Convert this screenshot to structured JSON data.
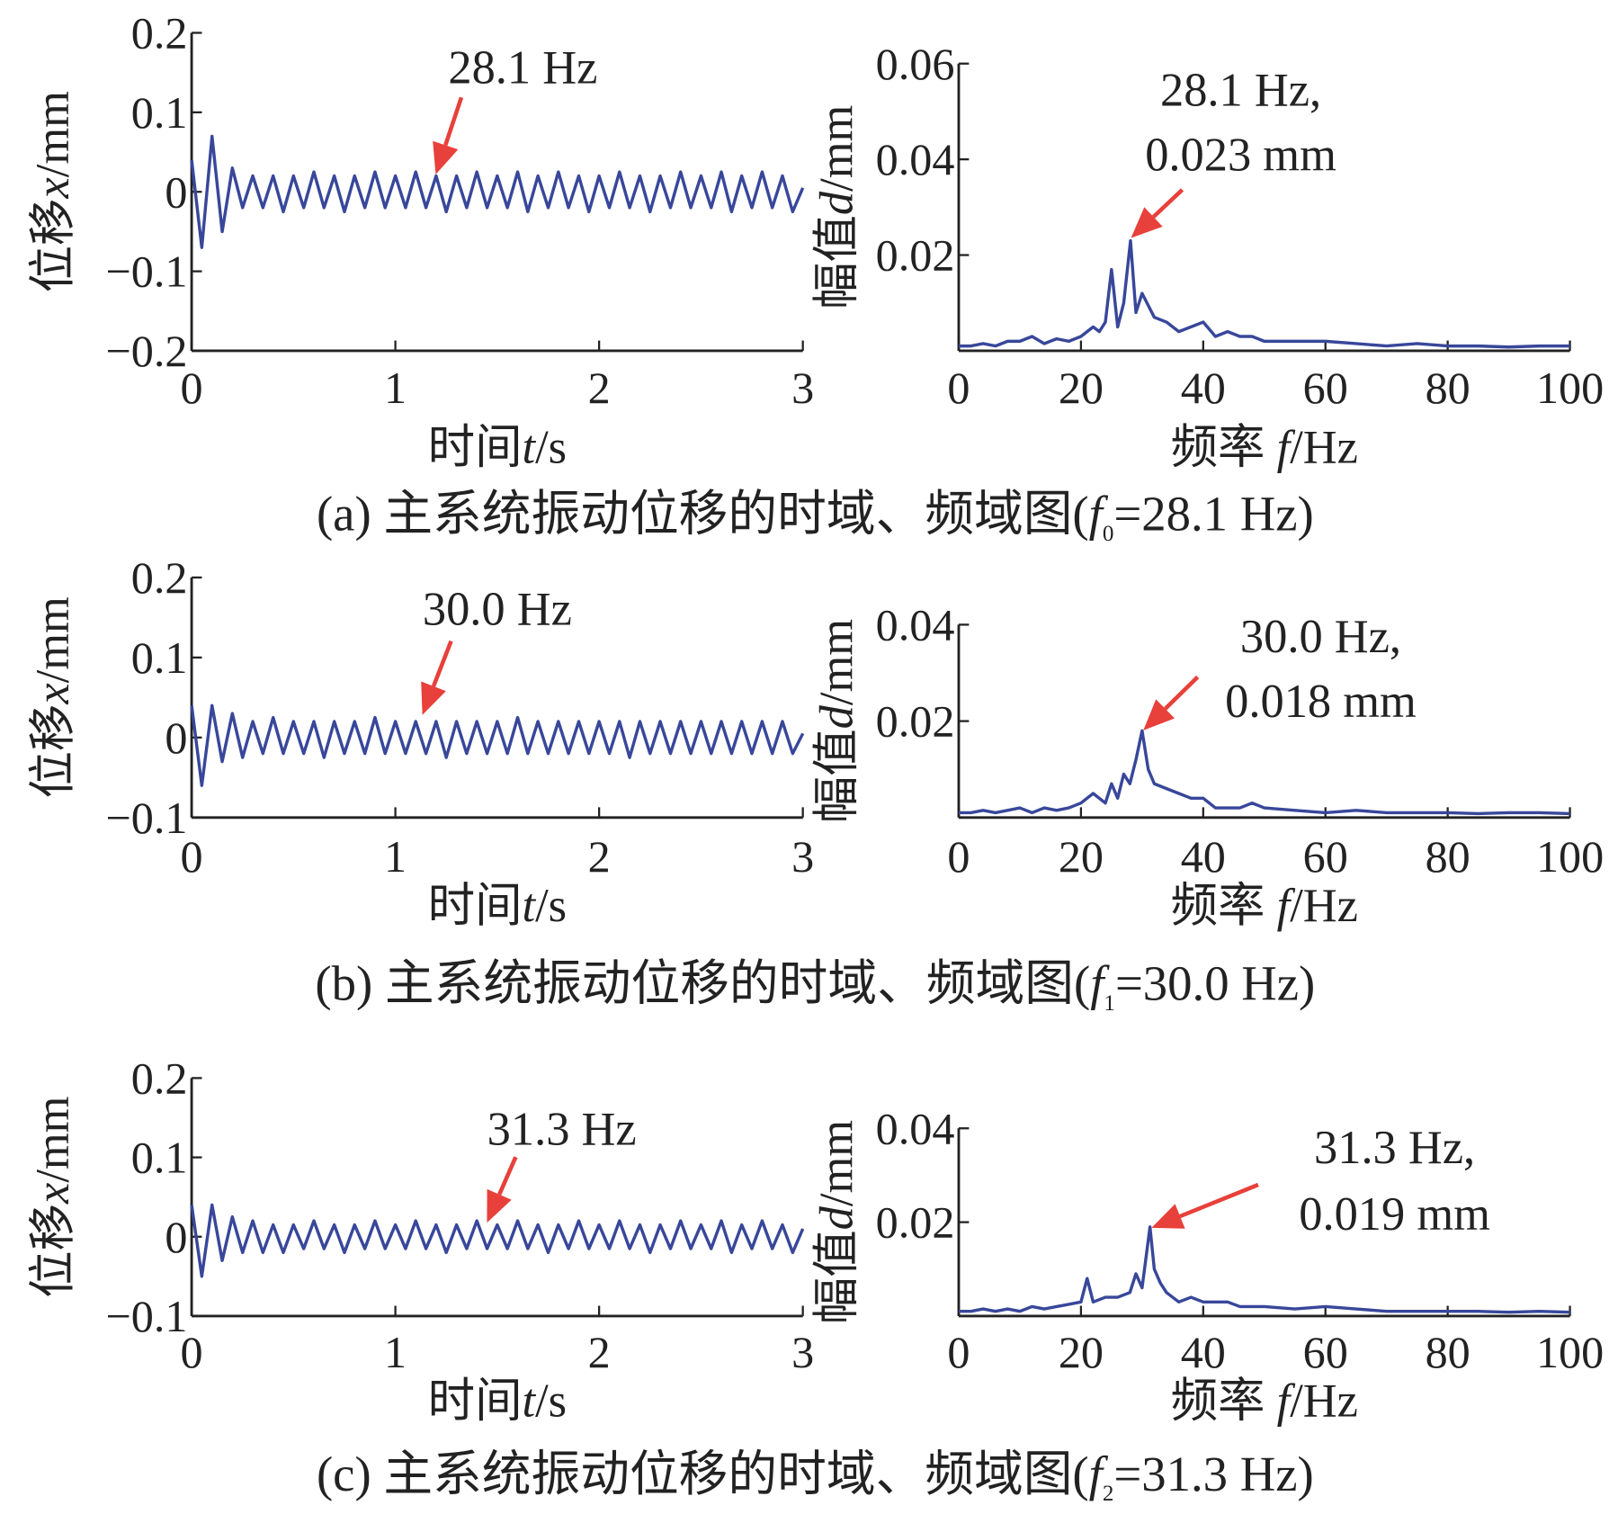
{
  "chart_data": [
    {
      "type": "line",
      "xlabel": [
        "时间",
        "t",
        "/s"
      ],
      "ylabel": [
        "位移",
        "x",
        "/mm"
      ],
      "xlim": [
        0,
        3
      ],
      "ylim": [
        -0.2,
        0.2
      ],
      "xticks": [
        0,
        1,
        2,
        3
      ],
      "yticks": [
        {
          "value": -0.2,
          "label": "−0.2"
        },
        {
          "value": -0.1,
          "label": "−0.1"
        },
        0,
        0.1,
        0.2
      ],
      "annotations": [
        "28.1 Hz"
      ],
      "series": [
        {
          "color": "#38479a",
          "x": [
            0,
            0.05,
            0.1,
            0.15,
            0.2,
            0.25,
            0.3,
            0.35,
            0.4,
            0.45,
            0.5,
            0.55,
            0.6,
            0.65,
            0.7,
            0.75,
            0.8,
            0.85,
            0.9,
            0.95,
            1,
            1.05,
            1.1,
            1.15,
            1.2,
            1.25,
            1.3,
            1.35,
            1.4,
            1.45,
            1.5,
            1.55,
            1.6,
            1.65,
            1.7,
            1.75,
            1.8,
            1.85,
            1.9,
            1.95,
            2,
            2.05,
            2.1,
            2.15,
            2.2,
            2.25,
            2.3,
            2.35,
            2.4,
            2.45,
            2.5,
            2.55,
            2.6,
            2.65,
            2.7,
            2.75,
            2.8,
            2.85,
            2.9,
            2.95,
            3
          ],
          "values": [
            0.04,
            -0.07,
            0.07,
            -0.05,
            0.03,
            -0.02,
            0.02,
            -0.02,
            0.02,
            -0.025,
            0.02,
            -0.02,
            0.025,
            -0.02,
            0.02,
            -0.025,
            0.02,
            -0.02,
            0.025,
            -0.02,
            0.02,
            -0.02,
            0.025,
            -0.02,
            0.02,
            -0.025,
            0.02,
            -0.02,
            0.025,
            -0.02,
            0.02,
            -0.02,
            0.025,
            -0.025,
            0.02,
            -0.02,
            0.025,
            -0.02,
            0.02,
            -0.025,
            0.02,
            -0.02,
            0.025,
            -0.02,
            0.02,
            -0.025,
            0.02,
            -0.02,
            0.025,
            -0.02,
            0.02,
            -0.02,
            0.025,
            -0.025,
            0.02,
            -0.02,
            0.025,
            -0.02,
            0.02,
            -0.025,
            0.005
          ]
        }
      ]
    },
    {
      "type": "line",
      "xlabel": [
        "频率 ",
        "f",
        "/Hz"
      ],
      "ylabel": [
        "幅值",
        "d",
        "/mm"
      ],
      "xlim": [
        0,
        100
      ],
      "ylim": [
        0,
        0.06
      ],
      "xticks": [
        0,
        20,
        40,
        60,
        80,
        100
      ],
      "yticks": [
        0.02,
        0.04,
        0.06
      ],
      "annotations": [
        "28.1 Hz,",
        "0.023 mm"
      ],
      "series": [
        {
          "color": "#38479a",
          "x": [
            0,
            2,
            4,
            6,
            8,
            10,
            12,
            14,
            16,
            18,
            20,
            22,
            23,
            24,
            25,
            26,
            27,
            28.1,
            29,
            30,
            32,
            34,
            36,
            38,
            40,
            42,
            44,
            46,
            48,
            50,
            55,
            60,
            65,
            70,
            75,
            80,
            85,
            90,
            95,
            100
          ],
          "values": [
            0.001,
            0.001,
            0.0015,
            0.001,
            0.002,
            0.002,
            0.003,
            0.0015,
            0.0025,
            0.002,
            0.003,
            0.005,
            0.004,
            0.006,
            0.017,
            0.005,
            0.01,
            0.023,
            0.008,
            0.012,
            0.007,
            0.006,
            0.004,
            0.005,
            0.006,
            0.003,
            0.004,
            0.003,
            0.003,
            0.002,
            0.002,
            0.002,
            0.0015,
            0.001,
            0.0015,
            0.001,
            0.001,
            0.0008,
            0.001,
            0.001
          ]
        }
      ]
    },
    {
      "type": "line",
      "xlabel": [
        "时间",
        "t",
        "/s"
      ],
      "ylabel": [
        "位移",
        "x",
        "/mm"
      ],
      "xlim": [
        0,
        3
      ],
      "ylim": [
        -0.1,
        0.2
      ],
      "xticks": [
        0,
        1,
        2,
        3
      ],
      "yticks": [
        {
          "value": -0.1,
          "label": "−0.1"
        },
        0,
        0.1,
        0.2
      ],
      "annotations": [
        "30.0 Hz"
      ],
      "series": [
        {
          "color": "#38479a",
          "x": [
            0,
            0.05,
            0.1,
            0.15,
            0.2,
            0.25,
            0.3,
            0.35,
            0.4,
            0.45,
            0.5,
            0.55,
            0.6,
            0.65,
            0.7,
            0.75,
            0.8,
            0.85,
            0.9,
            0.95,
            1,
            1.05,
            1.1,
            1.15,
            1.2,
            1.25,
            1.3,
            1.35,
            1.4,
            1.45,
            1.5,
            1.55,
            1.6,
            1.65,
            1.7,
            1.75,
            1.8,
            1.85,
            1.9,
            1.95,
            2,
            2.05,
            2.1,
            2.15,
            2.2,
            2.25,
            2.3,
            2.35,
            2.4,
            2.45,
            2.5,
            2.55,
            2.6,
            2.65,
            2.7,
            2.75,
            2.8,
            2.85,
            2.9,
            2.95,
            3
          ],
          "values": [
            0.04,
            -0.06,
            0.04,
            -0.03,
            0.03,
            -0.025,
            0.02,
            -0.02,
            0.025,
            -0.02,
            0.02,
            -0.02,
            0.02,
            -0.025,
            0.02,
            -0.02,
            0.02,
            -0.02,
            0.025,
            -0.02,
            0.02,
            -0.02,
            0.02,
            -0.02,
            0.02,
            -0.025,
            0.02,
            -0.02,
            0.02,
            -0.02,
            0.02,
            -0.02,
            0.025,
            -0.02,
            0.02,
            -0.02,
            0.02,
            -0.02,
            0.02,
            -0.02,
            0.02,
            -0.02,
            0.02,
            -0.025,
            0.02,
            -0.02,
            0.02,
            -0.02,
            0.02,
            -0.02,
            0.02,
            -0.02,
            0.02,
            -0.02,
            0.02,
            -0.02,
            0.02,
            -0.02,
            0.02,
            -0.02,
            0.005
          ]
        }
      ]
    },
    {
      "type": "line",
      "xlabel": [
        "频率 ",
        "f",
        "/Hz"
      ],
      "ylabel": [
        "幅值",
        "d",
        "/mm"
      ],
      "xlim": [
        0,
        100
      ],
      "ylim": [
        0,
        0.04
      ],
      "xticks": [
        0,
        20,
        40,
        60,
        80,
        100
      ],
      "yticks": [
        0.02,
        0.04
      ],
      "annotations": [
        "30.0 Hz,",
        "0.018 mm"
      ],
      "series": [
        {
          "color": "#38479a",
          "x": [
            0,
            2,
            4,
            6,
            8,
            10,
            12,
            14,
            16,
            18,
            20,
            22,
            24,
            25,
            26,
            27,
            28,
            29,
            30,
            31,
            32,
            34,
            36,
            38,
            40,
            42,
            44,
            46,
            48,
            50,
            55,
            60,
            65,
            70,
            75,
            80,
            85,
            90,
            95,
            100
          ],
          "values": [
            0.001,
            0.001,
            0.0015,
            0.001,
            0.0015,
            0.002,
            0.001,
            0.002,
            0.0015,
            0.002,
            0.003,
            0.005,
            0.003,
            0.007,
            0.004,
            0.009,
            0.007,
            0.012,
            0.018,
            0.01,
            0.007,
            0.006,
            0.005,
            0.004,
            0.004,
            0.002,
            0.002,
            0.002,
            0.003,
            0.002,
            0.0015,
            0.001,
            0.0015,
            0.001,
            0.001,
            0.001,
            0.0008,
            0.001,
            0.001,
            0.0008
          ]
        }
      ]
    },
    {
      "type": "line",
      "xlabel": [
        "时间",
        "t",
        "/s"
      ],
      "ylabel": [
        "位移",
        "x",
        "/mm"
      ],
      "xlim": [
        0,
        3
      ],
      "ylim": [
        -0.1,
        0.2
      ],
      "xticks": [
        0,
        1,
        2,
        3
      ],
      "yticks": [
        {
          "value": -0.1,
          "label": "−0.1"
        },
        0,
        0.1,
        0.2
      ],
      "annotations": [
        "31.3 Hz"
      ],
      "series": [
        {
          "color": "#38479a",
          "x": [
            0,
            0.05,
            0.1,
            0.15,
            0.2,
            0.25,
            0.3,
            0.35,
            0.4,
            0.45,
            0.5,
            0.55,
            0.6,
            0.65,
            0.7,
            0.75,
            0.8,
            0.85,
            0.9,
            0.95,
            1,
            1.05,
            1.1,
            1.15,
            1.2,
            1.25,
            1.3,
            1.35,
            1.4,
            1.45,
            1.5,
            1.55,
            1.6,
            1.65,
            1.7,
            1.75,
            1.8,
            1.85,
            1.9,
            1.95,
            2,
            2.05,
            2.1,
            2.15,
            2.2,
            2.25,
            2.3,
            2.35,
            2.4,
            2.45,
            2.5,
            2.55,
            2.6,
            2.65,
            2.7,
            2.75,
            2.8,
            2.85,
            2.9,
            2.95,
            3
          ],
          "values": [
            0.04,
            -0.05,
            0.04,
            -0.03,
            0.025,
            -0.02,
            0.02,
            -0.02,
            0.015,
            -0.02,
            0.015,
            -0.015,
            0.02,
            -0.015,
            0.015,
            -0.02,
            0.015,
            -0.015,
            0.02,
            -0.015,
            0.015,
            -0.015,
            0.02,
            -0.015,
            0.015,
            -0.02,
            0.015,
            -0.015,
            0.02,
            -0.015,
            0.015,
            -0.015,
            0.02,
            -0.015,
            0.015,
            -0.02,
            0.015,
            -0.015,
            0.02,
            -0.015,
            0.015,
            -0.015,
            0.02,
            -0.015,
            0.015,
            -0.02,
            0.015,
            -0.015,
            0.02,
            -0.015,
            0.015,
            -0.015,
            0.02,
            -0.02,
            0.015,
            -0.015,
            0.02,
            -0.015,
            0.015,
            -0.02,
            0.01
          ]
        }
      ]
    },
    {
      "type": "line",
      "xlabel": [
        "频率 ",
        "f",
        "/Hz"
      ],
      "ylabel": [
        "幅值",
        "d",
        "/mm"
      ],
      "xlim": [
        0,
        100
      ],
      "ylim": [
        0,
        0.04
      ],
      "xticks": [
        0,
        20,
        40,
        60,
        80,
        100
      ],
      "yticks": [
        0.02,
        0.04
      ],
      "annotations": [
        "31.3 Hz,",
        "0.019 mm"
      ],
      "series": [
        {
          "color": "#38479a",
          "x": [
            0,
            2,
            4,
            6,
            8,
            10,
            12,
            14,
            16,
            18,
            20,
            21,
            22,
            24,
            26,
            28,
            29,
            30,
            31.3,
            32,
            33,
            34,
            36,
            38,
            40,
            42,
            44,
            46,
            48,
            50,
            55,
            60,
            65,
            70,
            75,
            80,
            85,
            90,
            95,
            100
          ],
          "values": [
            0.001,
            0.001,
            0.0015,
            0.001,
            0.0015,
            0.001,
            0.002,
            0.0015,
            0.002,
            0.0025,
            0.003,
            0.008,
            0.003,
            0.004,
            0.004,
            0.005,
            0.009,
            0.006,
            0.019,
            0.01,
            0.007,
            0.005,
            0.003,
            0.004,
            0.003,
            0.003,
            0.003,
            0.002,
            0.002,
            0.002,
            0.0015,
            0.002,
            0.0015,
            0.001,
            0.001,
            0.001,
            0.001,
            0.0008,
            0.001,
            0.0008
          ]
        }
      ]
    }
  ],
  "captions": [
    [
      "(a) 主系统振动位移的时域、频域图(",
      "f",
      "0",
      "=28.1 Hz)"
    ],
    [
      "(b) 主系统振动位移的时域、频域图(",
      "f",
      "1",
      "=30.0 Hz)"
    ],
    [
      "(c) 主系统振动位移的时域、频域图(",
      "f",
      "2",
      "=31.3 Hz)"
    ]
  ]
}
